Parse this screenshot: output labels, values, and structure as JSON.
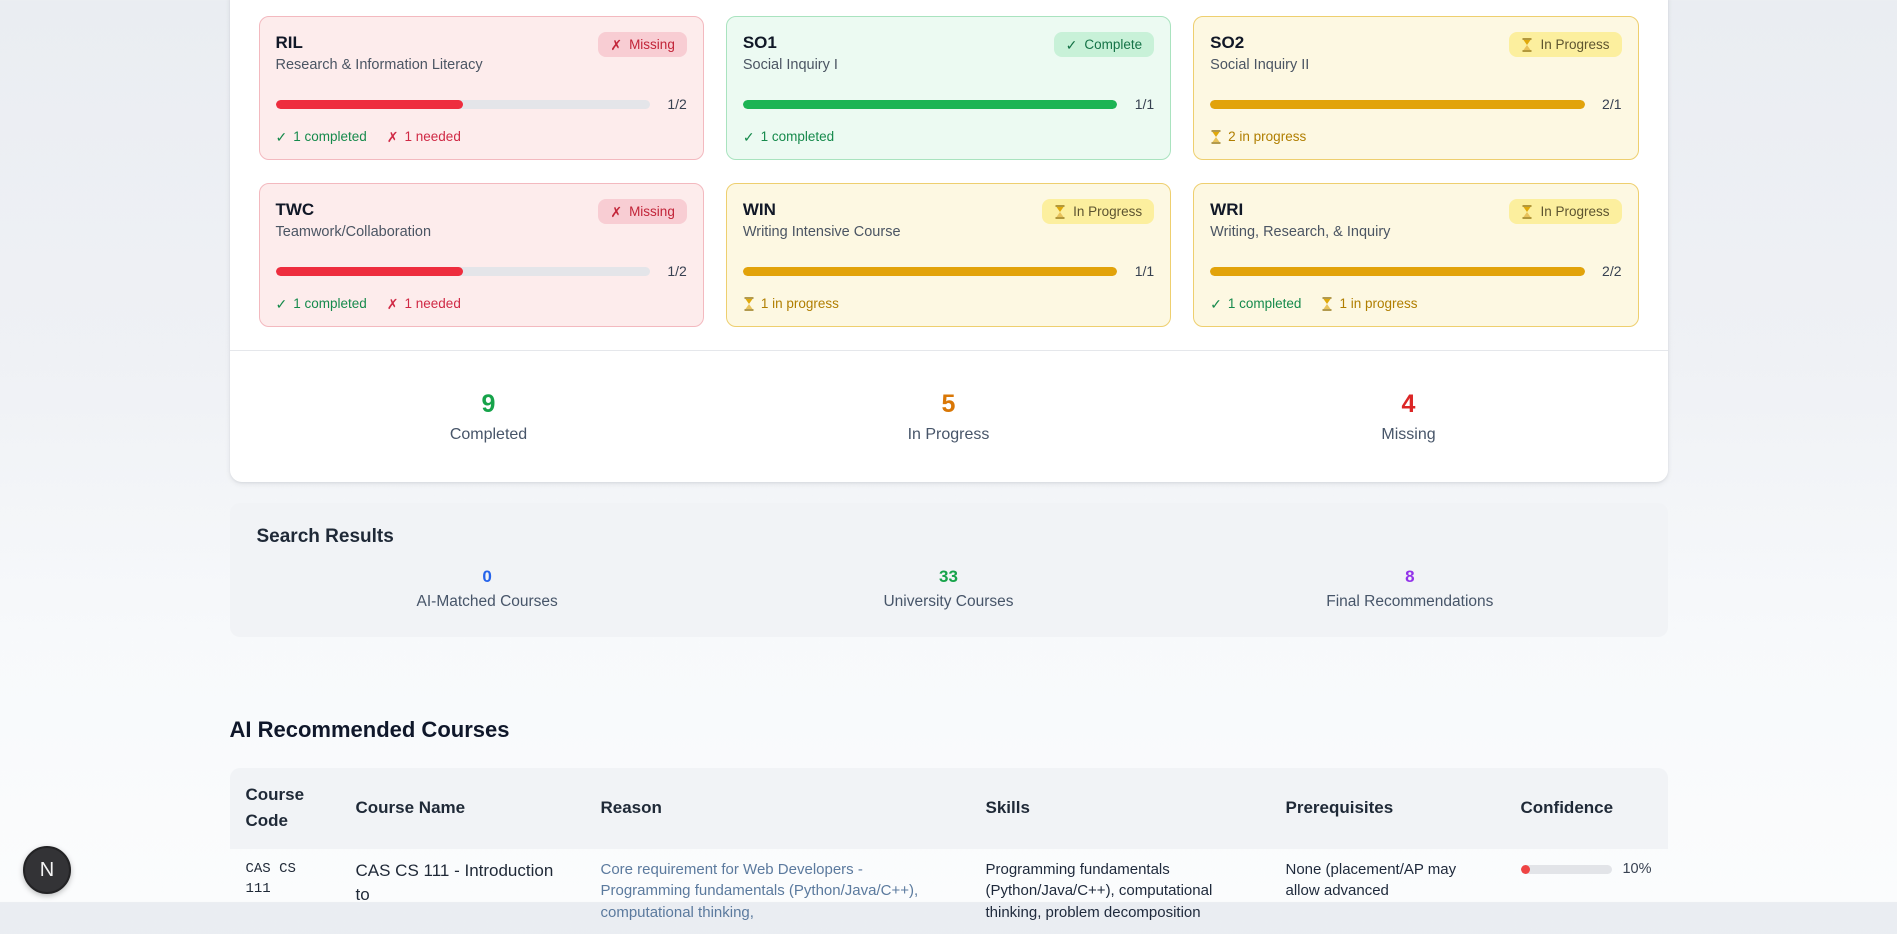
{
  "colors": {
    "missing": "#dc2626",
    "complete": "#16a34a",
    "in_progress": "#d97706",
    "ai_matched": "#2563eb",
    "university": "#16a34a",
    "final_recs": "#9333ea",
    "reason_text": "#5b7a9e",
    "confidence_fill": "#ef4444"
  },
  "requirements": {
    "cards": [
      {
        "code": "RIL",
        "name": "Research & Information Literacy",
        "badge": "Missing",
        "fraction": "1/2",
        "pct": 50,
        "statuses": [
          {
            "type": "completed",
            "text": "1 completed"
          },
          {
            "type": "needed",
            "text": "1 needed"
          }
        ]
      },
      {
        "code": "SO1",
        "name": "Social Inquiry I",
        "badge": "Complete",
        "fraction": "1/1",
        "pct": 100,
        "statuses": [
          {
            "type": "completed",
            "text": "1 completed"
          }
        ]
      },
      {
        "code": "SO2",
        "name": "Social Inquiry II",
        "badge": "In Progress",
        "fraction": "2/1",
        "pct": 100,
        "statuses": [
          {
            "type": "inprogress",
            "text": "2 in progress"
          }
        ]
      },
      {
        "code": "TWC",
        "name": "Teamwork/Collaboration",
        "badge": "Missing",
        "fraction": "1/2",
        "pct": 50,
        "statuses": [
          {
            "type": "completed",
            "text": "1 completed"
          },
          {
            "type": "needed",
            "text": "1 needed"
          }
        ]
      },
      {
        "code": "WIN",
        "name": "Writing Intensive Course",
        "badge": "In Progress",
        "fraction": "1/1",
        "pct": 100,
        "statuses": [
          {
            "type": "inprogress",
            "text": "1 in progress"
          }
        ]
      },
      {
        "code": "WRI",
        "name": "Writing, Research, & Inquiry",
        "badge": "In Progress",
        "fraction": "2/2",
        "pct": 100,
        "statuses": [
          {
            "type": "completed",
            "text": "1 completed"
          },
          {
            "type": "inprogress",
            "text": "1 in progress"
          }
        ]
      }
    ],
    "summary": [
      {
        "value": "9",
        "label": "Completed"
      },
      {
        "value": "5",
        "label": "In Progress"
      },
      {
        "value": "4",
        "label": "Missing"
      }
    ]
  },
  "search_results": {
    "title": "Search Results",
    "stats": [
      {
        "value": "0",
        "label": "AI-Matched Courses"
      },
      {
        "value": "33",
        "label": "University Courses"
      },
      {
        "value": "8",
        "label": "Final Recommendations"
      }
    ]
  },
  "recommended": {
    "title": "AI Recommended Courses",
    "columns": [
      "Course Code",
      "Course Name",
      "Reason",
      "Skills",
      "Prerequisites",
      "Confidence"
    ],
    "rows": [
      {
        "code": "CAS CS 111",
        "name": "CAS CS 111 - Introduction to",
        "reason": "Core requirement for Web Developers - Programming fundamentals (Python/Java/C++), computational thinking,",
        "skills": "Programming fundamentals (Python/Java/C++), computational thinking, problem decomposition",
        "prerequisites": "None (placement/AP may allow advanced",
        "confidence": "10%",
        "confidence_pct": 10
      }
    ]
  },
  "floating_button": {
    "label": "N"
  }
}
